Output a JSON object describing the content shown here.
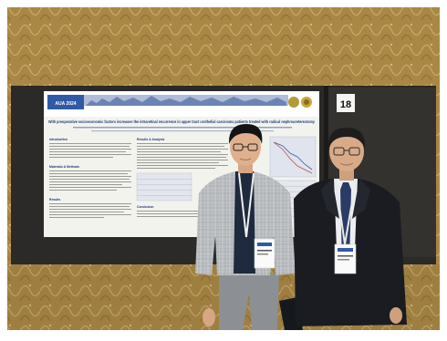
{
  "poster": {
    "title": "With preoperative socioeconomic factors increases the intraretinal recurrence in upper tract urothelial carcinoma patients treated with radical nephroureterectomy",
    "logo_text": "AUA 2024",
    "section_headings": [
      "Introduction",
      "Materials & Methods",
      "Results",
      "Results & Analysis",
      "Conclusion"
    ]
  },
  "board_number": "18",
  "colors": {
    "wall_gold": "#b8934a",
    "board_dark": "#2b2a28",
    "poster_paper": "#f3f3ee",
    "title_blue": "#1e3a7a",
    "banner_blue": "#2f5aa6"
  }
}
